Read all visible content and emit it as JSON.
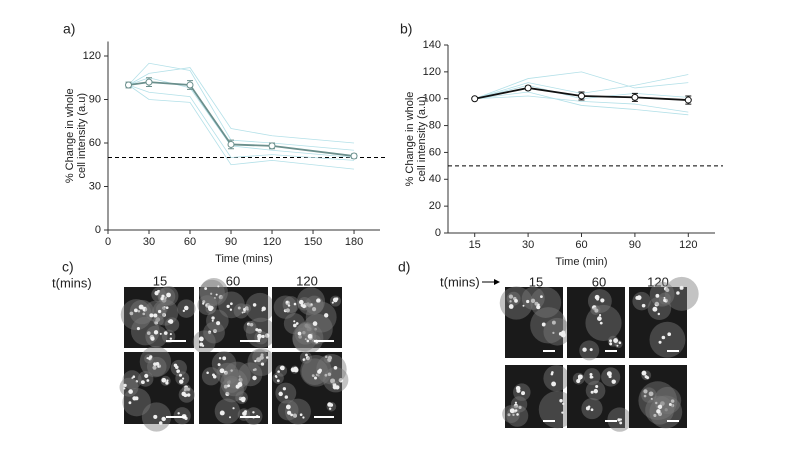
{
  "chart_data": [
    {
      "type": "line",
      "xlabel": "Time (mins)",
      "ylabel": [
        "% Change in whole",
        "cell intensity (a.u)"
      ],
      "x": [
        15,
        30,
        60,
        90,
        120,
        180
      ],
      "xlim": [
        0,
        199
      ],
      "xticks": [
        0,
        30,
        60,
        90,
        120,
        150,
        180
      ],
      "ylim": [
        0,
        130
      ],
      "yticks": [
        0,
        30,
        60,
        90,
        120
      ],
      "hline": 50,
      "series": [
        {
          "color": "#6a8f8c",
          "values": [
            100,
            102,
            100,
            59,
            58,
            51
          ],
          "errors": [
            2,
            3,
            3,
            3,
            2,
            1.5
          ]
        }
      ],
      "cell_traces": {
        "color": "#b3e0e8",
        "values": [
          [
            100,
            115,
            110,
            62,
            60,
            55
          ],
          [
            100,
            95,
            92,
            50,
            52,
            48
          ],
          [
            100,
            108,
            112,
            70,
            65,
            60
          ],
          [
            100,
            90,
            88,
            45,
            48,
            42
          ],
          [
            100,
            105,
            98,
            58,
            55,
            50
          ]
        ]
      }
    },
    {
      "type": "line",
      "xlabel": "Time (min)",
      "ylabel": [
        "% Change in whole",
        "cell intensity (a.u)"
      ],
      "categories": [
        "15",
        "30",
        "60",
        "90",
        "120"
      ],
      "ylim": [
        0,
        140
      ],
      "yticks": [
        0,
        20,
        40,
        60,
        80,
        100,
        120,
        140
      ],
      "hline": 50,
      "series": [
        {
          "color": "#111111",
          "values": [
            100,
            108,
            102,
            101,
            99
          ],
          "errors": [
            0,
            1.5,
            3,
            3,
            3
          ]
        }
      ],
      "cell_traces": {
        "color": "#b3e0e8",
        "values": [
          [
            100,
            112,
            104,
            110,
            118
          ],
          [
            100,
            105,
            95,
            92,
            88
          ],
          [
            100,
            115,
            120,
            108,
            112
          ],
          [
            100,
            102,
            98,
            96,
            90
          ],
          [
            100,
            110,
            100,
            104,
            101
          ]
        ]
      }
    }
  ],
  "panels": {
    "labels": [
      "a)",
      "b)",
      "c)",
      "d)"
    ],
    "c": {
      "axis_label": "t(mins)",
      "times": [
        "15",
        "60",
        "120"
      ]
    },
    "d": {
      "axis_label": "t(mins)",
      "times": [
        "15",
        "60",
        "120"
      ]
    }
  }
}
